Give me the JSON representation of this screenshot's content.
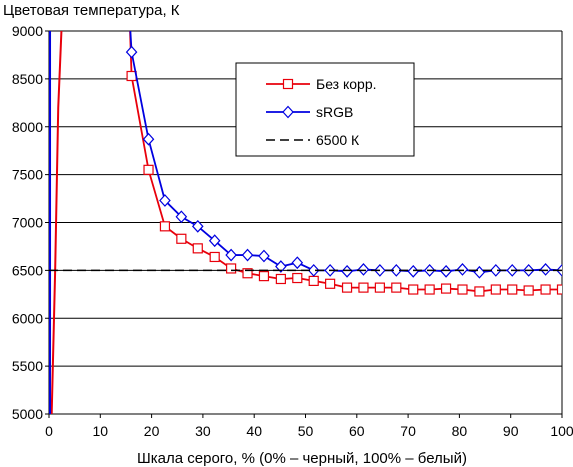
{
  "chart_data": {
    "type": "line",
    "title": "Цветовая температура, К",
    "xlabel": "Шкала серого, % (0% – черный, 100% – белый)",
    "ylabel": "",
    "xlim": [
      0,
      100
    ],
    "ylim": [
      5000,
      9000
    ],
    "x_ticks": [
      0,
      10,
      20,
      30,
      40,
      50,
      60,
      70,
      80,
      90,
      100
    ],
    "y_ticks": [
      5000,
      5500,
      6000,
      6500,
      7000,
      7500,
      8000,
      8500,
      9000
    ],
    "grid": "horizontal",
    "legend_position": "top-right",
    "series": [
      {
        "name": "Без корр.",
        "color": "#e8000b",
        "marker": "square",
        "line": [
          [
            0.5,
            4950
          ],
          [
            1.2,
            6500
          ],
          [
            1.8,
            8200
          ],
          [
            2.5,
            9100
          ]
        ],
        "x": [
          16.1,
          19.4,
          22.6,
          25.8,
          29.0,
          32.3,
          35.5,
          38.7,
          41.9,
          45.2,
          48.4,
          51.6,
          54.8,
          58.1,
          61.3,
          64.5,
          67.7,
          71.0,
          74.2,
          77.4,
          80.6,
          83.9,
          87.1,
          90.3,
          93.5,
          96.8,
          100
        ],
        "values": [
          8530,
          7550,
          6960,
          6830,
          6730,
          6640,
          6520,
          6470,
          6440,
          6410,
          6420,
          6390,
          6360,
          6320,
          6320,
          6320,
          6320,
          6300,
          6300,
          6310,
          6300,
          6280,
          6300,
          6300,
          6290,
          6300,
          6300
        ]
      },
      {
        "name": "sRGB",
        "color": "#0000e0",
        "marker": "diamond",
        "line": [
          [
            0.2,
            4950
          ],
          [
            0.2,
            9100
          ]
        ],
        "x": [
          16.1,
          19.4,
          22.6,
          25.8,
          29.0,
          32.3,
          35.5,
          38.7,
          41.9,
          45.2,
          48.4,
          51.6,
          54.8,
          58.1,
          61.3,
          64.5,
          67.7,
          71.0,
          74.2,
          77.4,
          80.6,
          83.9,
          87.1,
          90.3,
          93.5,
          96.8,
          100
        ],
        "values": [
          8780,
          7870,
          7230,
          7060,
          6960,
          6810,
          6660,
          6660,
          6650,
          6540,
          6580,
          6500,
          6500,
          6490,
          6510,
          6500,
          6500,
          6490,
          6500,
          6490,
          6510,
          6480,
          6500,
          6500,
          6500,
          6510,
          6500
        ]
      },
      {
        "name": "6500 К",
        "color": "#000000",
        "style": "dashed",
        "x": [
          0,
          100
        ],
        "values": [
          6500,
          6500
        ]
      }
    ]
  }
}
